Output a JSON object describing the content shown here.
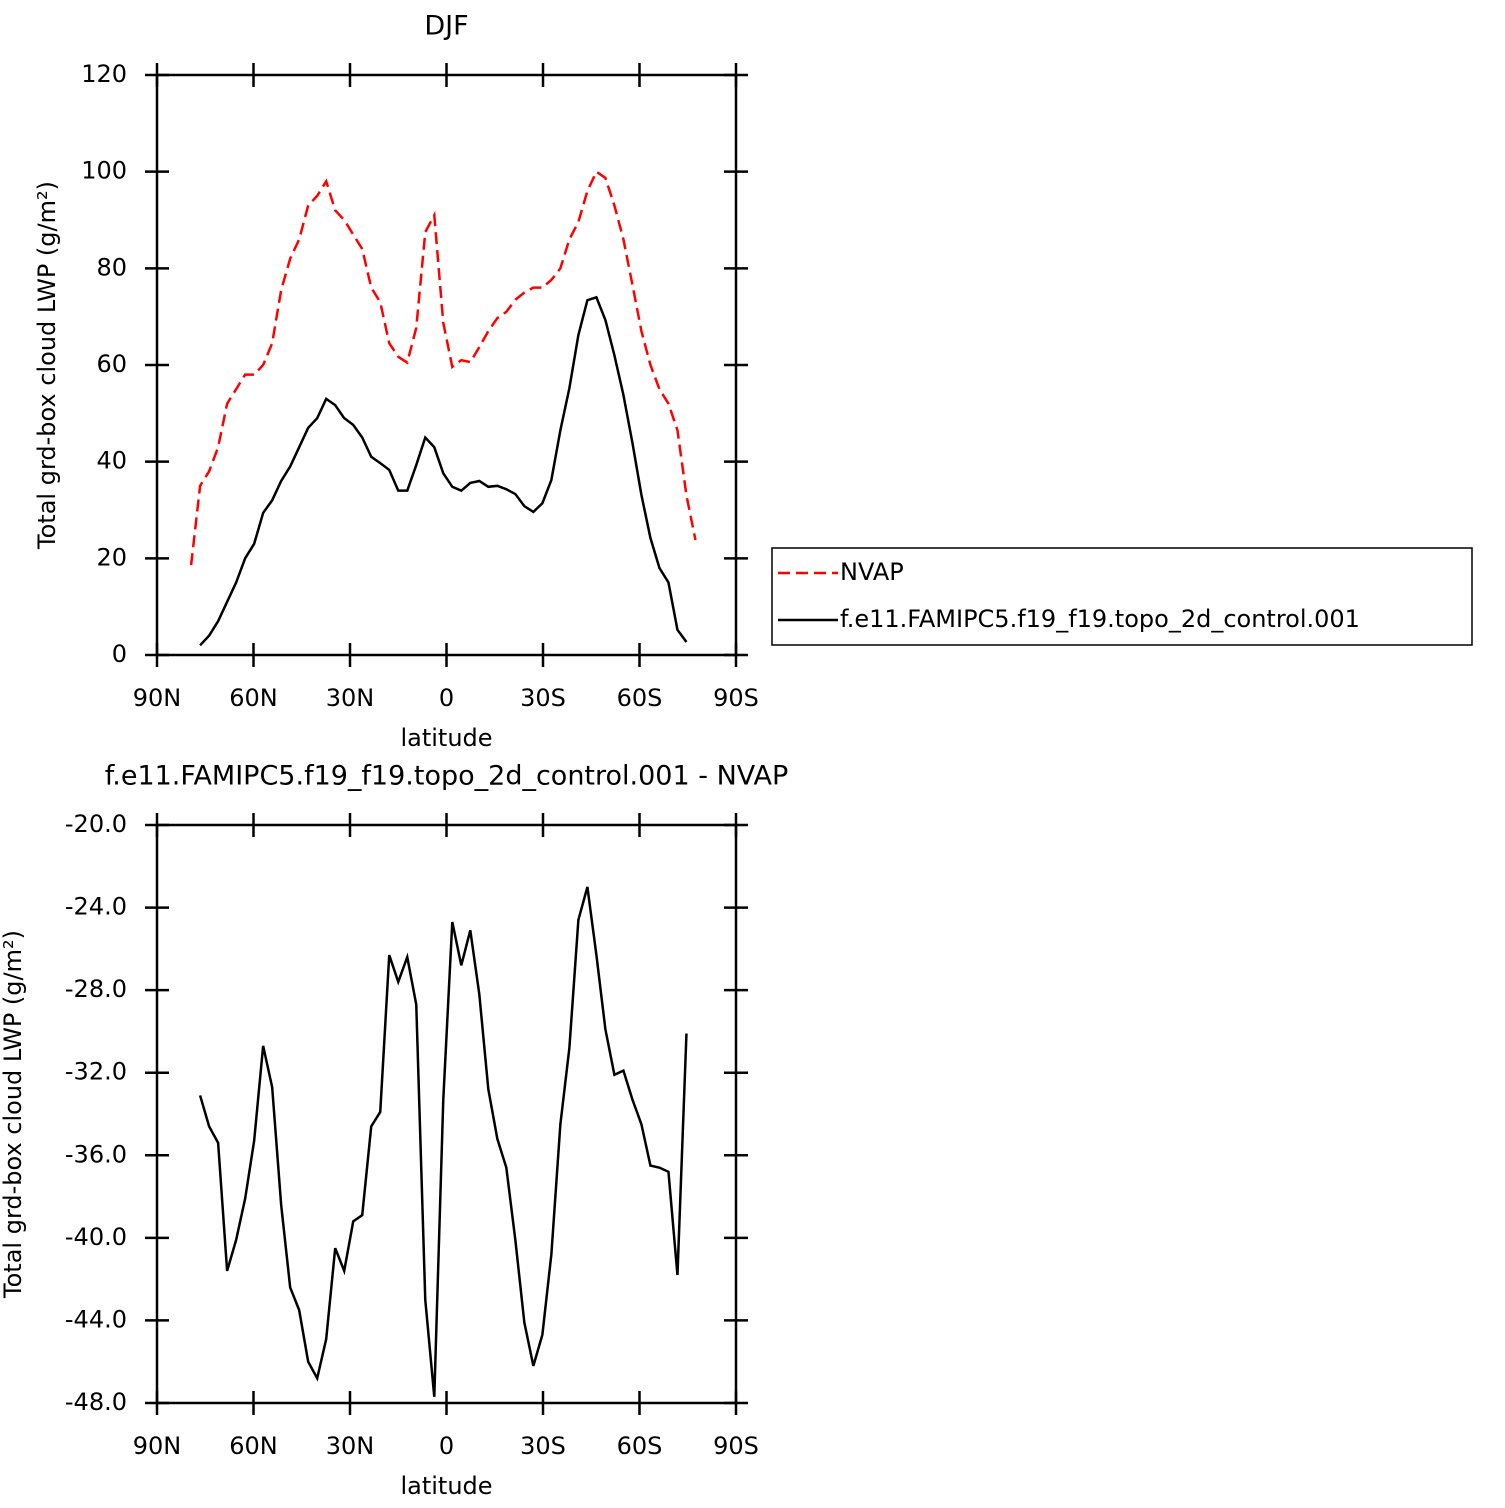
{
  "chart_data": [
    {
      "type": "line",
      "title": "DJF",
      "xlabel": "latitude",
      "ylabel": "Total grd-box cloud LWP (g/m²)",
      "x": [
        79.4,
        76.6,
        73.8,
        71.0,
        68.2,
        65.4,
        62.6,
        59.8,
        57.0,
        54.2,
        51.4,
        48.6,
        45.8,
        43.0,
        40.2,
        37.4,
        34.6,
        31.8,
        29.0,
        26.2,
        23.4,
        20.6,
        17.8,
        15.0,
        12.2,
        9.4,
        6.6,
        3.8,
        1.0,
        -1.8,
        -4.6,
        -7.4,
        -10.2,
        -13.0,
        -15.8,
        -18.6,
        -21.4,
        -24.2,
        -27.0,
        -29.8,
        -32.6,
        -35.4,
        -38.2,
        -41.0,
        -43.8,
        -46.6,
        -49.4,
        -52.2,
        -55.0,
        -57.8,
        -60.6,
        -63.4,
        -66.2,
        -69.0,
        -71.8,
        -74.6,
        -77.4
      ],
      "series": [
        {
          "name": "NVAP",
          "color": "#ff0000",
          "line_style": "dashed",
          "values": [
            18.6,
            35,
            38,
            43,
            52,
            55,
            58,
            58,
            60,
            64.5,
            75.5,
            82,
            86,
            93,
            95,
            98,
            92,
            90,
            87,
            84,
            76,
            73,
            64.5,
            61.7,
            60.5,
            67.7,
            87.5,
            91,
            68.7,
            59.6,
            61,
            60.6,
            63.7,
            67,
            69.7,
            71,
            73.5,
            75,
            76,
            76,
            77.6,
            80,
            86,
            89.6,
            96,
            100,
            98.7,
            93,
            86,
            76.6,
            67,
            60,
            55,
            52,
            46.5,
            33,
            23.8
          ]
        },
        {
          "name": "f.e11.FAMIPC5.f19_f19.topo_2d_control.001",
          "color": "#000000",
          "line_style": "solid",
          "values": [
            null,
            2,
            4,
            7,
            11,
            15,
            20,
            23,
            29.4,
            32,
            36,
            39,
            43,
            47,
            49,
            53,
            51.7,
            49,
            47.6,
            45,
            41,
            39.7,
            38.3,
            34,
            34,
            39.3,
            45,
            43,
            37.6,
            34.8,
            34,
            35.6,
            36,
            34.8,
            35,
            34.3,
            33.3,
            30.8,
            29.6,
            31.4,
            36.2,
            46.5,
            55.2,
            66.2,
            73.4,
            74,
            69.3,
            62,
            53.8,
            43.9,
            33.1,
            24.2,
            18,
            15,
            5.2,
            2.7,
            null
          ]
        }
      ],
      "xlim": [
        90,
        -90
      ],
      "xticks": [
        {
          "value": 90,
          "label": "90N"
        },
        {
          "value": 60,
          "label": "60N"
        },
        {
          "value": 30,
          "label": "30N"
        },
        0,
        {
          "value": -30,
          "label": "30S"
        },
        {
          "value": -60,
          "label": "60S"
        },
        {
          "value": -90,
          "label": "90S"
        }
      ],
      "ylim": [
        0,
        120
      ],
      "yticks": [
        0,
        20,
        40,
        60,
        80,
        100,
        120
      ],
      "legend": "right"
    },
    {
      "type": "line",
      "title": "f.e11.FAMIPC5.f19_f19.topo_2d_control.001 - NVAP",
      "xlabel": "latitude",
      "ylabel": "Total grd-box cloud LWP (g/m²)",
      "x": [
        79.4,
        76.6,
        73.8,
        71.0,
        68.2,
        65.4,
        62.6,
        59.8,
        57.0,
        54.2,
        51.4,
        48.6,
        45.8,
        43.0,
        40.2,
        37.4,
        34.6,
        31.8,
        29.0,
        26.2,
        23.4,
        20.6,
        17.8,
        15.0,
        12.2,
        9.4,
        6.6,
        3.8,
        1.0,
        -1.8,
        -4.6,
        -7.4,
        -10.2,
        -13.0,
        -15.8,
        -18.6,
        -21.4,
        -24.2,
        -27.0,
        -29.8,
        -32.6,
        -35.4,
        -38.2,
        -41.0,
        -43.8,
        -46.6,
        -49.4,
        -52.2,
        -55.0,
        -57.8,
        -60.6,
        -63.4,
        -66.2,
        -69.0,
        -71.8,
        -74.6,
        -77.4
      ],
      "series": [
        {
          "color": "#000000",
          "line_style": "solid",
          "values": [
            null,
            -33.1,
            -34.6,
            -35.4,
            -41.6,
            -40.1,
            -38.1,
            -35.3,
            -30.7,
            -32.7,
            -38.4,
            -42.4,
            -43.5,
            -46.0,
            -46.8,
            -44.9,
            -40.5,
            -41.6,
            -39.2,
            -38.9,
            -34.6,
            -33.9,
            -26.3,
            -27.6,
            -26.4,
            -28.7,
            -43.0,
            -47.7,
            -33.3,
            -24.7,
            -26.8,
            -25.1,
            -28.2,
            -32.8,
            -35.2,
            -36.6,
            -40.1,
            -44.1,
            -46.2,
            -44.7,
            -40.8,
            -34.5,
            -30.8,
            -24.6,
            -23.0,
            -26.3,
            -29.9,
            -32.1,
            -31.9,
            -33.3,
            -34.5,
            -36.5,
            -36.6,
            -36.8,
            -41.8,
            -30.1,
            null
          ]
        }
      ],
      "xlim": [
        90,
        -90
      ],
      "xticks": [
        {
          "value": 90,
          "label": "90N"
        },
        {
          "value": 60,
          "label": "60N"
        },
        {
          "value": 30,
          "label": "30N"
        },
        0,
        {
          "value": -30,
          "label": "30S"
        },
        {
          "value": -60,
          "label": "60S"
        },
        {
          "value": -90,
          "label": "90S"
        }
      ],
      "ylim": [
        -48,
        -20
      ],
      "yticks": [
        {
          "value": -48,
          "label": "-48.0"
        },
        {
          "value": -44,
          "label": "-44.0"
        },
        {
          "value": -40,
          "label": "-40.0"
        },
        {
          "value": -36,
          "label": "-36.0"
        },
        {
          "value": -32,
          "label": "-32.0"
        },
        {
          "value": -28,
          "label": "-28.0"
        },
        {
          "value": -24,
          "label": "-24.0"
        },
        {
          "value": -20,
          "label": "-20.0"
        }
      ]
    }
  ]
}
